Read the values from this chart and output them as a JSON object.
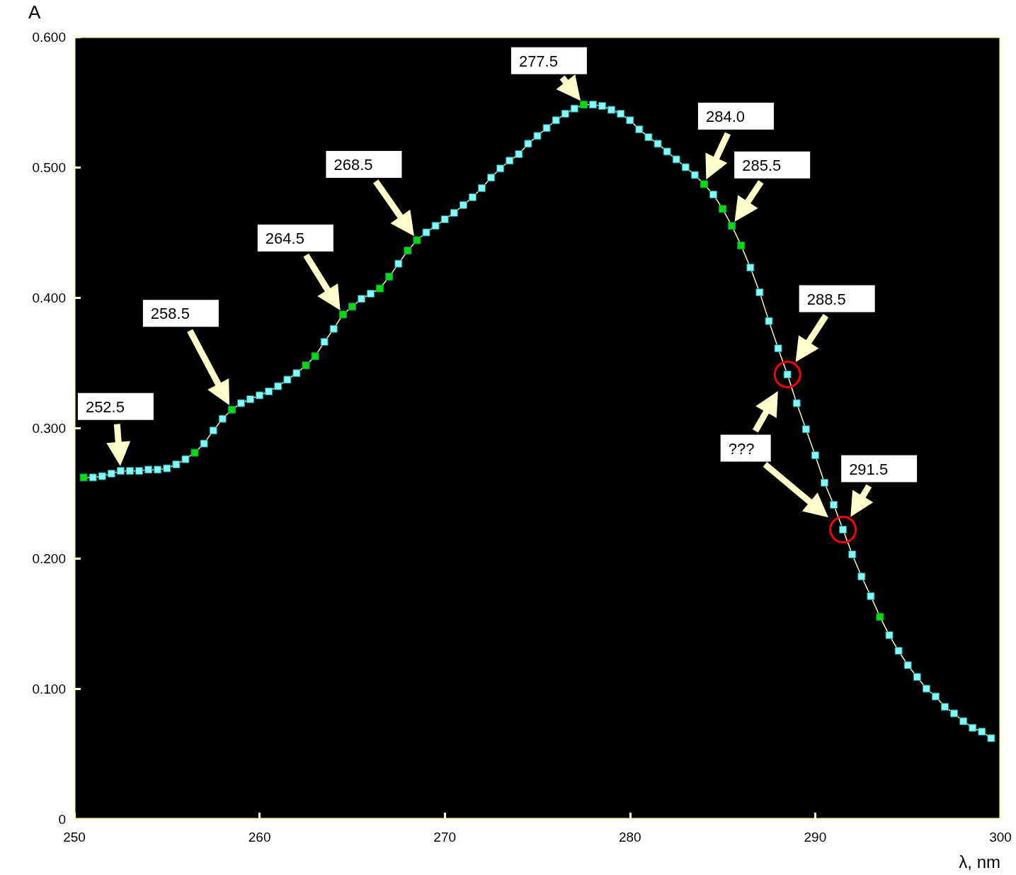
{
  "chart_data": {
    "type": "line",
    "xlabel": "λ, nm",
    "ylabel": "A",
    "xlim": [
      250,
      300
    ],
    "xticks": [
      250,
      260,
      270,
      280,
      290,
      300
    ],
    "ylim": [
      0,
      0.6
    ],
    "yticks": [
      0,
      {
        "value": 0.1,
        "label": "0.100"
      },
      {
        "value": 0.2,
        "label": "0.200"
      },
      {
        "value": 0.3,
        "label": "0.300"
      },
      {
        "value": 0.4,
        "label": "0.400"
      },
      {
        "value": 0.5,
        "label": "0.500"
      },
      {
        "value": 0.6,
        "label": "0.600"
      }
    ],
    "grid": false,
    "marker": "square",
    "line_style": "solid",
    "x": [
      250.5,
      251,
      251.5,
      252,
      252.5,
      253,
      253.5,
      254,
      254.5,
      255,
      255.5,
      256,
      256.5,
      257,
      257.5,
      258,
      258.5,
      259,
      259.5,
      260,
      260.5,
      261,
      261.5,
      262,
      262.5,
      263,
      263.5,
      264,
      264.5,
      265,
      265.5,
      266,
      266.5,
      267,
      267.5,
      268,
      268.5,
      269,
      269.5,
      270,
      270.5,
      271,
      271.5,
      272,
      272.5,
      273,
      273.5,
      274,
      274.5,
      275,
      275.5,
      276,
      276.5,
      277,
      277.5,
      278,
      278.5,
      279,
      279.5,
      280,
      280.5,
      281,
      281.5,
      282,
      282.5,
      283,
      283.5,
      284,
      284.5,
      285,
      285.5,
      286,
      286.5,
      287,
      287.5,
      288,
      288.5,
      289,
      289.5,
      290,
      290.5,
      291,
      291.5,
      292,
      292.5,
      293,
      293.5,
      294,
      294.5,
      295,
      295.5,
      296,
      296.5,
      297,
      297.5,
      298,
      298.5,
      299,
      299.5
    ],
    "series": [
      {
        "color": "#ffff99",
        "values": [
          0.262,
          0.262,
          0.263,
          0.265,
          0.267,
          0.267,
          0.267,
          0.268,
          0.268,
          0.269,
          0.272,
          0.276,
          0.281,
          0.288,
          0.298,
          0.307,
          0.314,
          0.319,
          0.322,
          0.325,
          0.328,
          0.332,
          0.337,
          0.342,
          0.348,
          0.355,
          0.366,
          0.376,
          0.387,
          0.393,
          0.399,
          0.403,
          0.407,
          0.416,
          0.426,
          0.436,
          0.444,
          0.45,
          0.455,
          0.46,
          0.465,
          0.471,
          0.477,
          0.484,
          0.492,
          0.499,
          0.505,
          0.51,
          0.518,
          0.524,
          0.53,
          0.536,
          0.541,
          0.545,
          0.548,
          0.548,
          0.547,
          0.544,
          0.541,
          0.536,
          0.529,
          0.523,
          0.518,
          0.512,
          0.506,
          0.5,
          0.494,
          0.487,
          0.479,
          0.468,
          0.455,
          0.44,
          0.423,
          0.404,
          0.382,
          0.361,
          0.341,
          0.319,
          0.299,
          0.279,
          0.258,
          0.241,
          0.222,
          0.203,
          0.186,
          0.171,
          0.155,
          0.141,
          0.129,
          0.118,
          0.109,
          0.1,
          0.094,
          0.086,
          0.081,
          0.075,
          0.07,
          0.067,
          0.062
        ],
        "colors": [
          "#00dd00",
          "#80ffff",
          "#80ffff",
          "#80ffff",
          "#80ffff",
          "#80ffff",
          "#80ffff",
          "#80ffff",
          "#80ffff",
          "#80ffff",
          "#80ffff",
          "#80ffff",
          "#00dd00",
          "#80ffff",
          "#80ffff",
          "#80ffff",
          "#00dd00",
          "#80ffff",
          "#80ffff",
          "#80ffff",
          "#80ffff",
          "#80ffff",
          "#80ffff",
          "#80ffff",
          "#00dd00",
          "#00dd00",
          "#80ffff",
          "#80ffff",
          "#00dd00",
          "#00dd00",
          "#80ffff",
          "#80ffff",
          "#00dd00",
          "#00dd00",
          "#80ffff",
          "#00dd00",
          "#00dd00",
          "#80ffff",
          "#80ffff",
          "#80ffff",
          "#80ffff",
          "#80ffff",
          "#80ffff",
          "#80ffff",
          "#80ffff",
          "#80ffff",
          "#80ffff",
          "#80ffff",
          "#80ffff",
          "#80ffff",
          "#80ffff",
          "#80ffff",
          "#80ffff",
          "#80ffff",
          "#00dd00",
          "#80ffff",
          "#80ffff",
          "#80ffff",
          "#80ffff",
          "#80ffff",
          "#80ffff",
          "#80ffff",
          "#80ffff",
          "#80ffff",
          "#80ffff",
          "#80ffff",
          "#80ffff",
          "#00dd00",
          "#80ffff",
          "#00dd00",
          "#00dd00",
          "#00dd00",
          "#80ffff",
          "#80ffff",
          "#80ffff",
          "#80ffff",
          "#80ffff",
          "#80ffff",
          "#80ffff",
          "#80ffff",
          "#80ffff",
          "#80ffff",
          "#80ffff",
          "#80ffff",
          "#80ffff",
          "#80ffff",
          "#00dd00",
          "#80ffff",
          "#80ffff",
          "#80ffff",
          "#80ffff",
          "#80ffff",
          "#80ffff",
          "#80ffff",
          "#80ffff",
          "#80ffff",
          "#80ffff",
          "#80ffff",
          "#80ffff"
        ]
      }
    ],
    "annotations": [
      "252.5",
      "258.5",
      "264.5",
      "268.5",
      {
        "text": "277.5",
        "x": 277.5,
        "y": 0.548
      },
      "284.0",
      "285.5",
      "288.5",
      "291.5",
      "???"
    ]
  }
}
